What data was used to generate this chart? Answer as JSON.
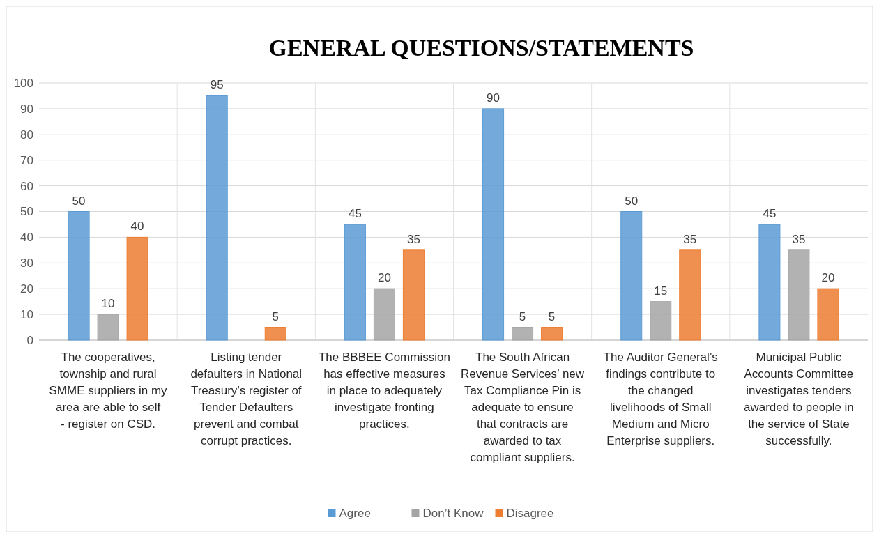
{
  "chart_data": {
    "type": "bar",
    "title": "GENERAL QUESTIONS/STATEMENTS",
    "categories": [
      "The cooperatives, township and rural SMME suppliers in my area are able to self - register on CSD.",
      "Listing tender defaulters in National Treasury’s register of Tender Defaulters prevent and combat corrupt practices.",
      "The BBBEE Commission has effective measures in place to adequately investigate fronting practices.",
      "The South African Revenue Services’ new Tax Compliance Pin is adequate to ensure that contracts are awarded to tax compliant suppliers.",
      "The Auditor General’s findings contribute to the changed livelihoods of Small Medium and Micro Enterprise suppliers.",
      "Municipal Public Accounts Committee investigates tenders awarded to people in the service of State successfully."
    ],
    "series": [
      {
        "name": "Agree",
        "color": "#5b9bd5",
        "values": [
          50,
          95,
          45,
          90,
          50,
          45
        ],
        "value_labels": [
          "50",
          "95",
          "45",
          "90",
          "50",
          "45"
        ]
      },
      {
        "name": "Don’t Know",
        "color": "#a5a5a5",
        "values": [
          10,
          null,
          20,
          5,
          15,
          35
        ],
        "value_labels": [
          "10",
          null,
          "20",
          "5",
          "15",
          "35"
        ]
      },
      {
        "name": "Disagree",
        "color": "#ed7d31",
        "values": [
          40,
          5,
          35,
          5,
          35,
          20
        ],
        "value_labels": [
          "40",
          "5",
          "35",
          "5",
          "35",
          "20"
        ]
      }
    ],
    "ylim": [
      0,
      100
    ],
    "yticks": [
      0,
      10,
      20,
      30,
      40,
      50,
      60,
      70,
      80,
      90,
      100
    ],
    "grid": "y",
    "legend": "bottom"
  }
}
